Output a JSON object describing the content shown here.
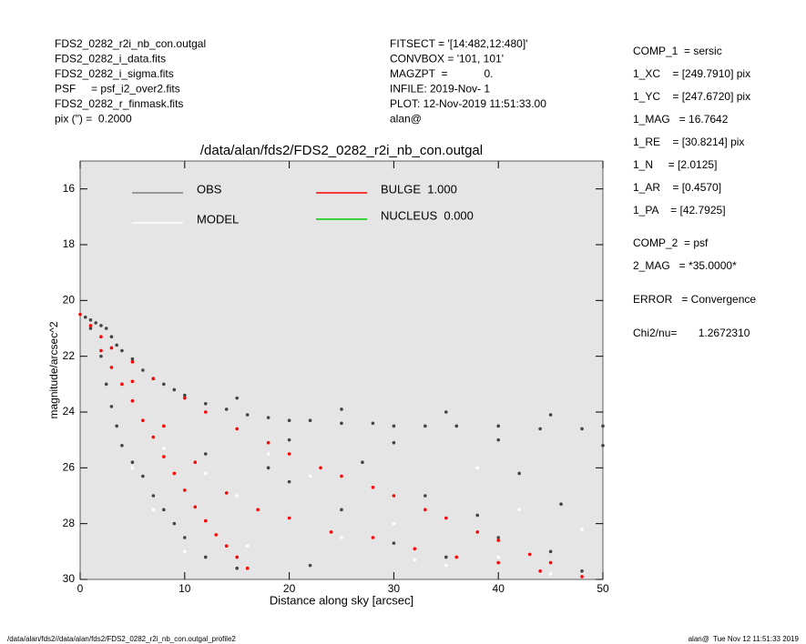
{
  "header_left": [
    "FDS2_0282_r2i_nb_con.outgal",
    "FDS2_0282_i_data.fits",
    "FDS2_0282_i_sigma.fits",
    "PSF     = psf_i2_over2.fits",
    "FDS2_0282_r_finmask.fits",
    "pix (\") =  0.2000"
  ],
  "header_middle": [
    "FITSECT = '[14:482,12:480]'",
    "CONVBOX = '101, 101'",
    "MAGZPT  =            0.",
    "INFILE: 2019-Nov- 1",
    "PLOT: 12-Nov-2019 11:51:33.00",
    "alan@"
  ],
  "fit_params": [
    "COMP_1  = sersic",
    "1_XC    = [249.7910] pix",
    "1_YC    = [247.6720] pix",
    "1_MAG   = 16.7642",
    "1_RE    = [30.8214] pix",
    "1_N     = [2.0125]",
    "1_AR    = [0.4570]",
    "1_PA    = [42.7925]",
    "COMP_2  = psf",
    "2_MAG   = *35.0000*",
    "ERROR   = Convergence",
    "Chi2/nu=       1.2672310"
  ],
  "footer_left": "/data/alan/fds2//data/alan/fds2/FDS2_0282_r2i_nb_con.outgal_profile2",
  "footer_right": "alan@  Tue Nov 12 11:51:33 2019",
  "chart_data": {
    "type": "scatter",
    "title": "/data/alan/fds2/FDS2_0282_r2i_nb_con.outgal",
    "x_label": "Distance along sky [arcsec]",
    "y_label": "magnitude/arcsec^2",
    "xlim": [
      0,
      50
    ],
    "ylim": [
      30,
      15
    ],
    "xticks": [
      0,
      10,
      20,
      30,
      40,
      50
    ],
    "yticks": [
      16,
      18,
      20,
      22,
      24,
      26,
      28,
      30
    ],
    "background": "#e5e5e5",
    "series": [
      {
        "name": "OBS",
        "color": "#444444",
        "legend_color": "#808080",
        "x": [
          0.5,
          1,
          1.5,
          2,
          2.5,
          3,
          3.5,
          4,
          5,
          6,
          7,
          8,
          9,
          10,
          12,
          14,
          16,
          18,
          20,
          22,
          25,
          28,
          30,
          33,
          36,
          40,
          44,
          48,
          50,
          1,
          2,
          2.5,
          3,
          3.5,
          4,
          5,
          6,
          7,
          8,
          9,
          10,
          12,
          15,
          20,
          25,
          30,
          35,
          40,
          45,
          48,
          12,
          18,
          27,
          42,
          38,
          22,
          33,
          46,
          15,
          25,
          35,
          45,
          20,
          30,
          40,
          50
        ],
        "y": [
          20.6,
          20.7,
          20.8,
          20.9,
          21.0,
          21.3,
          21.6,
          21.8,
          22.1,
          22.5,
          22.8,
          23.0,
          23.2,
          23.4,
          23.7,
          23.9,
          24.1,
          24.2,
          24.3,
          24.3,
          24.4,
          24.4,
          24.5,
          24.5,
          24.5,
          24.5,
          24.6,
          24.6,
          24.5,
          21.0,
          22.0,
          23.0,
          23.8,
          24.5,
          25.2,
          25.8,
          26.3,
          27.0,
          27.5,
          28.0,
          28.5,
          29.2,
          29.6,
          26.5,
          27.5,
          28.7,
          29.2,
          28.5,
          29.0,
          29.7,
          25.5,
          26.0,
          25.8,
          26.2,
          27.7,
          29.5,
          27.0,
          27.3,
          23.5,
          23.9,
          24.0,
          24.1,
          25.0,
          25.1,
          25.0,
          25.2
        ]
      },
      {
        "name": "MODEL",
        "color": "#ffffff",
        "legend_color": "#ffffff",
        "x": [
          7,
          10,
          15,
          20,
          25,
          30,
          35,
          40,
          45,
          12,
          18,
          28,
          38,
          48,
          5,
          22,
          32,
          42,
          8,
          16
        ],
        "y": [
          27.5,
          29,
          27,
          27.8,
          28.5,
          28,
          29.5,
          29.2,
          29.8,
          26.2,
          25.5,
          26.7,
          26.0,
          28.2,
          26,
          26.3,
          29.3,
          27.5,
          25.3,
          28.8
        ]
      },
      {
        "name": "BULGE  1.000",
        "color": "#ff0000",
        "legend_color": "#ff0000",
        "x": [
          0,
          1,
          2,
          3,
          5,
          7,
          10,
          12,
          15,
          18,
          20,
          23,
          25,
          28,
          30,
          33,
          35,
          38,
          40,
          43,
          45,
          48,
          2,
          3,
          4,
          5,
          6,
          7,
          8,
          9,
          10,
          11,
          12,
          13,
          14,
          15,
          16,
          5,
          8,
          11,
          14,
          17,
          20,
          24,
          28,
          32,
          36,
          40,
          44
        ],
        "y": [
          20.5,
          20.9,
          21.3,
          21.7,
          22.2,
          22.8,
          23.5,
          24.0,
          24.6,
          25.1,
          25.5,
          26.0,
          26.3,
          26.7,
          27.0,
          27.5,
          27.8,
          28.3,
          28.6,
          29.1,
          29.4,
          29.9,
          21.8,
          22.4,
          23.0,
          23.6,
          24.3,
          24.9,
          25.6,
          26.2,
          26.8,
          27.4,
          27.9,
          28.4,
          28.8,
          29.2,
          29.6,
          22.9,
          24.5,
          25.8,
          26.9,
          27.5,
          27.8,
          28.3,
          28.5,
          28.9,
          29.2,
          29.4,
          29.7
        ]
      },
      {
        "name": "NUCLEUS  0.000",
        "color": "#00cc00",
        "legend_color": "#00cc00",
        "x": [],
        "y": []
      }
    ]
  }
}
